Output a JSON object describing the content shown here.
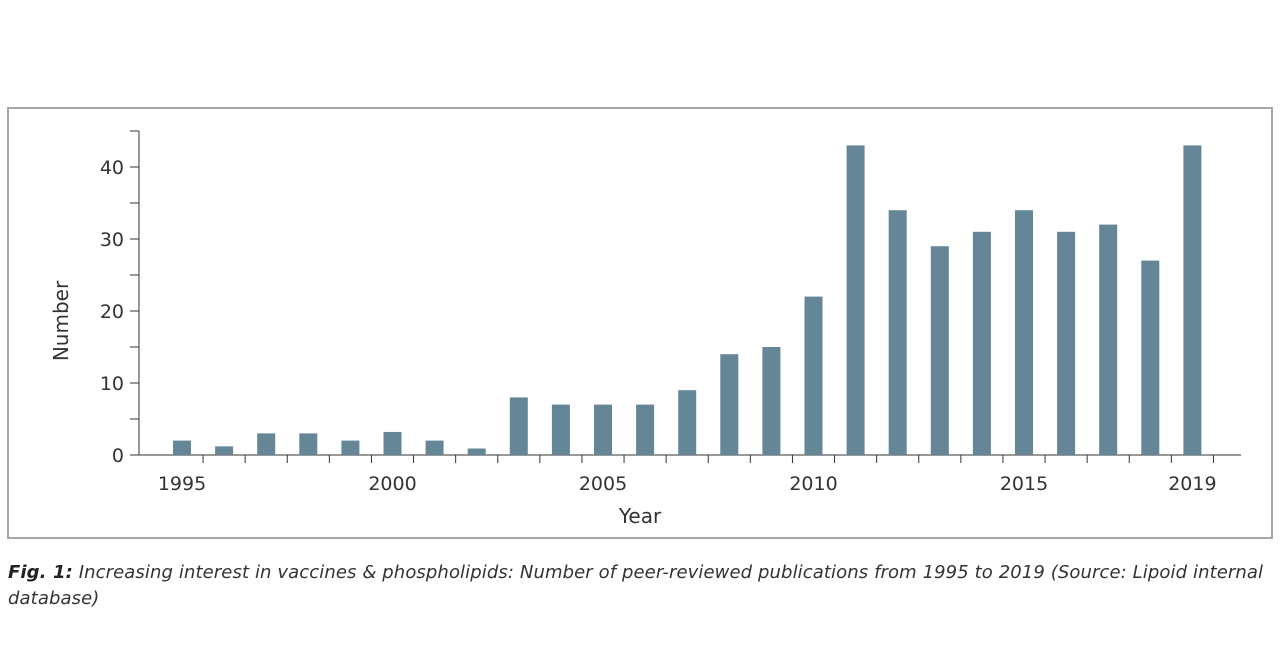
{
  "chart_data": {
    "type": "bar",
    "xlabel": "Year",
    "ylabel": "Number",
    "ylim": [
      0,
      45
    ],
    "yticks": [
      0,
      10,
      20,
      30,
      40
    ],
    "xtick_labels": [
      "1995",
      "2000",
      "2005",
      "2010",
      "2015",
      "2019"
    ],
    "categories": [
      "1995",
      "1996",
      "1997",
      "1998",
      "1999",
      "2000",
      "2001",
      "2002",
      "2003",
      "2004",
      "2005",
      "2006",
      "2007",
      "2008",
      "2009",
      "2010",
      "2011",
      "2012",
      "2013",
      "2014",
      "2015",
      "2016",
      "2017",
      "2018",
      "2019"
    ],
    "values": [
      2,
      1.2,
      3,
      3,
      2,
      3.2,
      2,
      0.9,
      8,
      7,
      7,
      7,
      9,
      14,
      15,
      22,
      43,
      34,
      29,
      31,
      34,
      31,
      32,
      27,
      43
    ],
    "bar_color": "#648696",
    "grid": false
  },
  "caption": {
    "label": "Fig. 1:",
    "text": " Increasing interest in vaccines & phospholipids: Number of peer-reviewed publications from 1995 to 2019 (Source: Lipoid internal database)"
  }
}
